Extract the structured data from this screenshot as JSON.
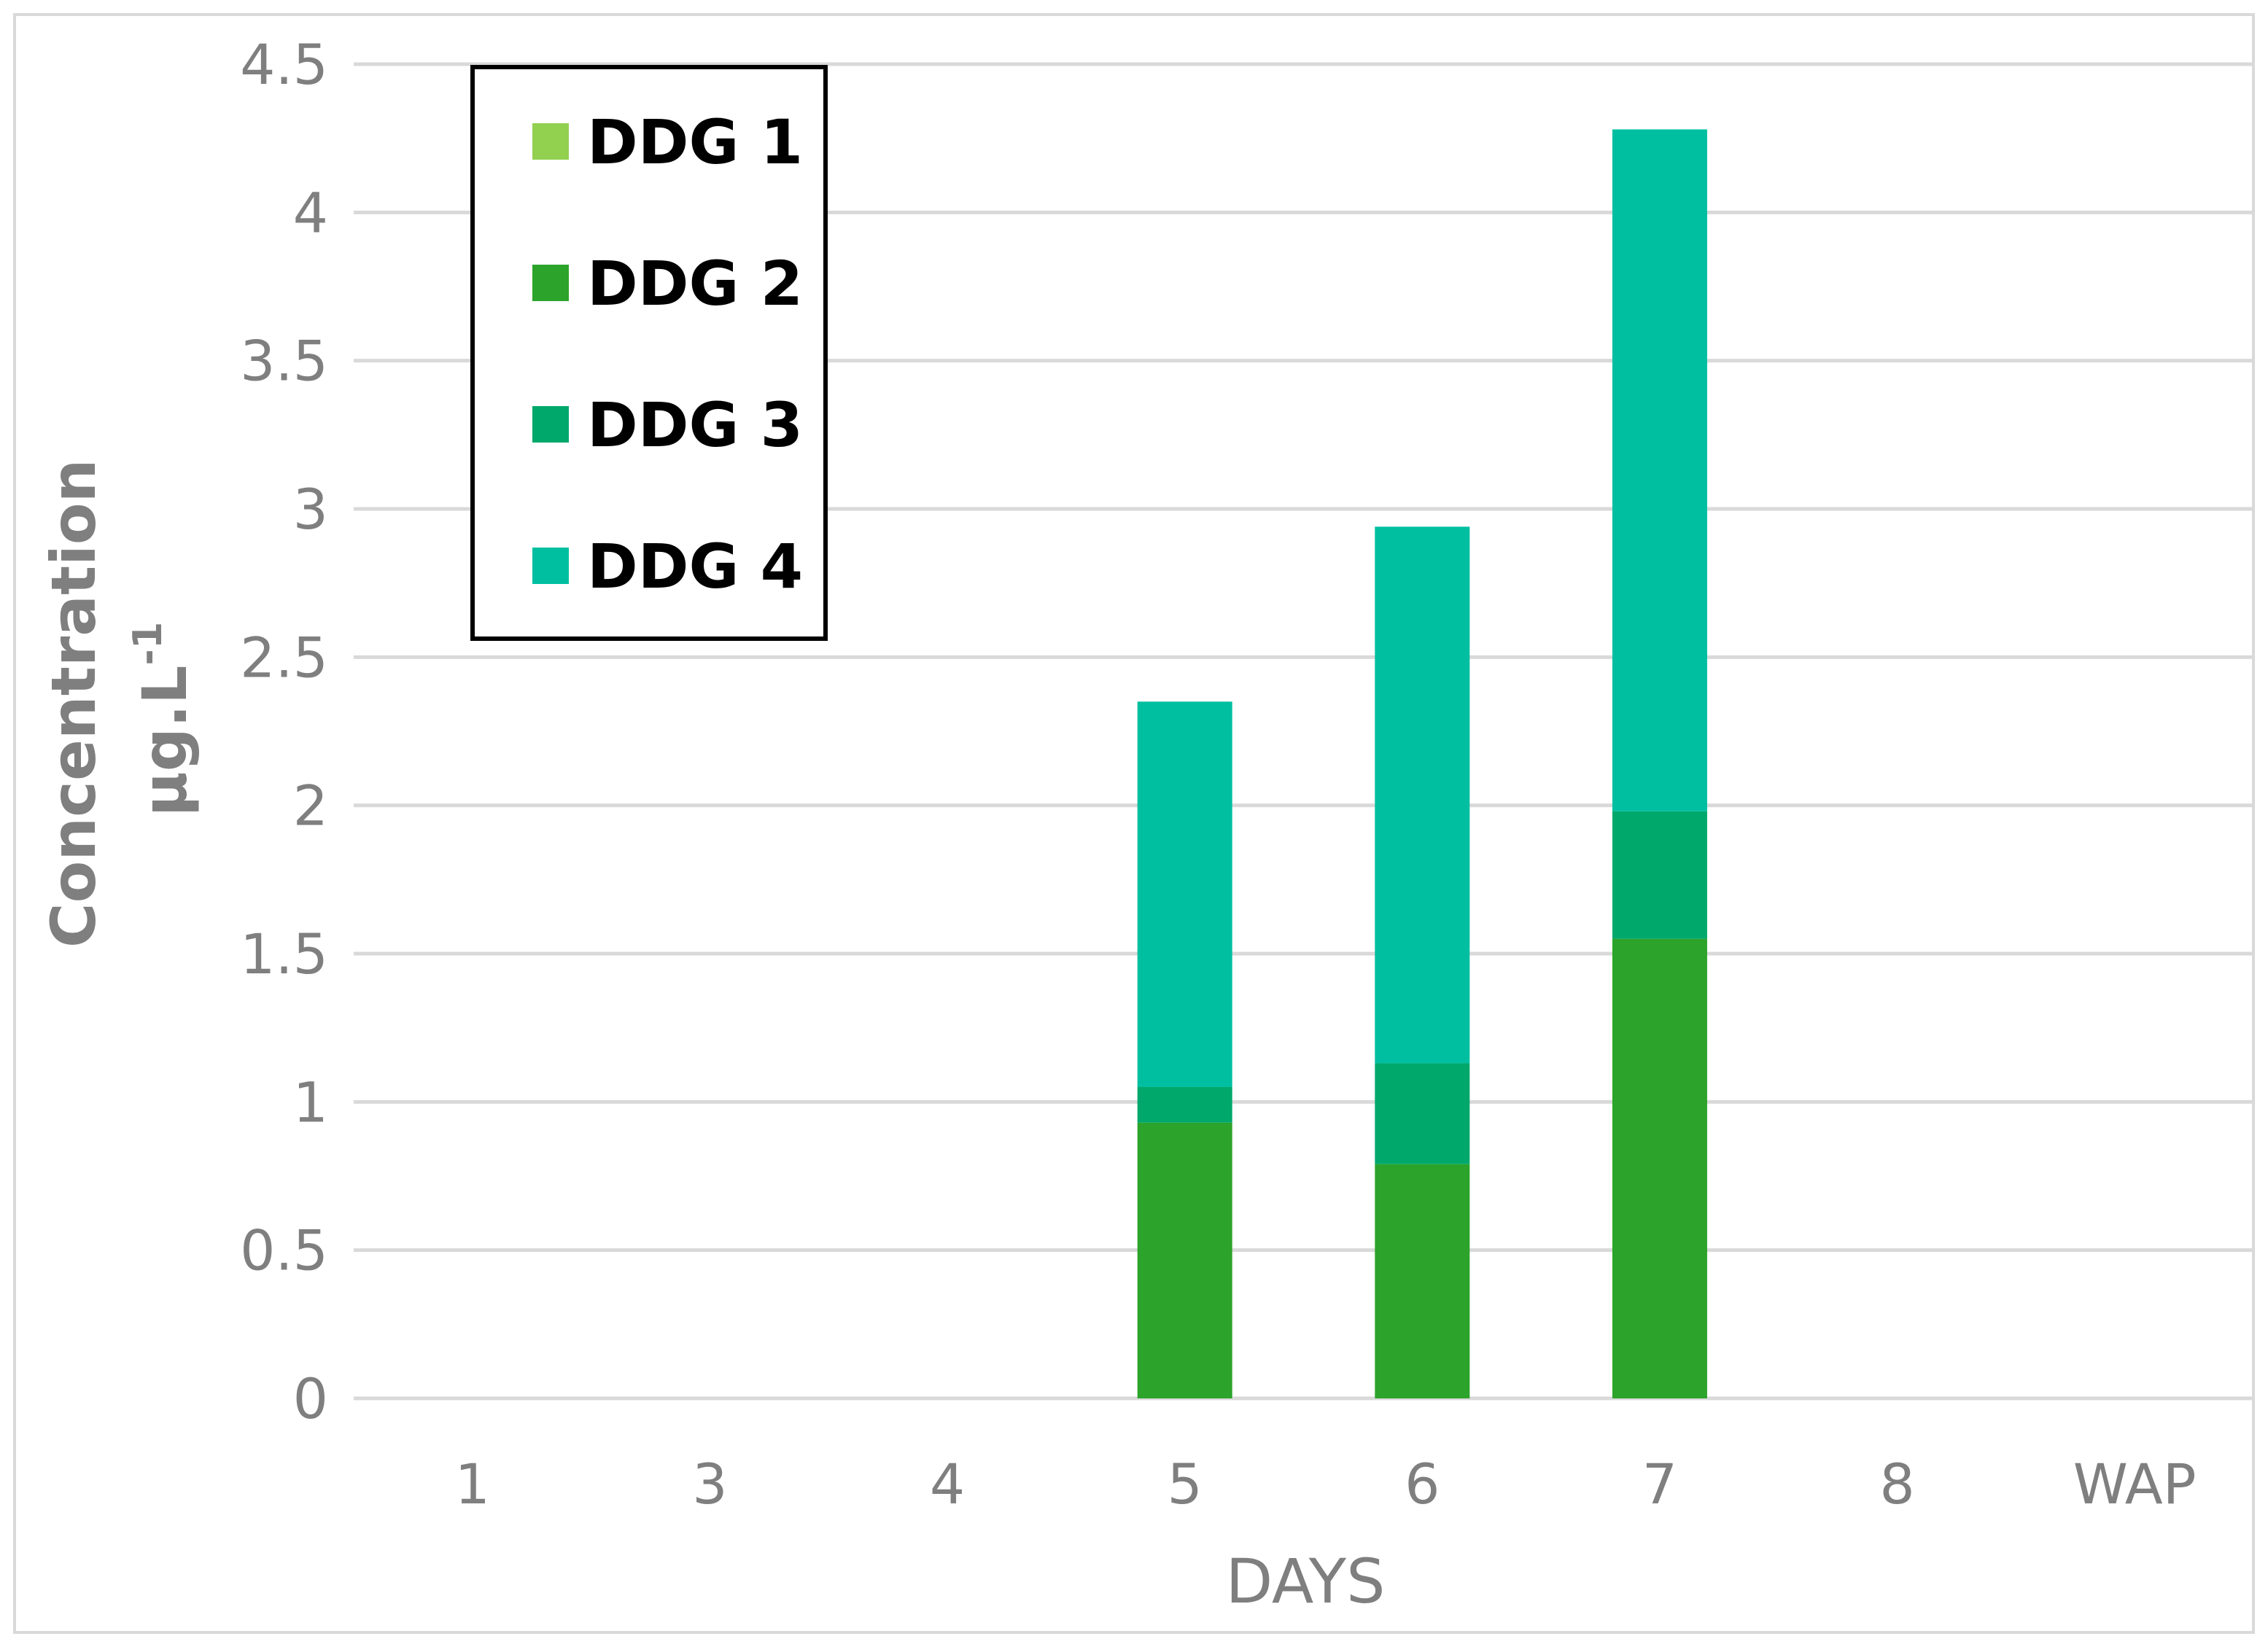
{
  "chart_data": {
    "type": "bar",
    "stacked": true,
    "categories": [
      "1",
      "3",
      "4",
      "5",
      "6",
      "7",
      "8",
      "WAP"
    ],
    "series": [
      {
        "name": "DDG 1",
        "color": "#92d050",
        "values": [
          0,
          0,
          0,
          0,
          0,
          0,
          0,
          0
        ]
      },
      {
        "name": "DDG 2",
        "color": "#2ca32a",
        "values": [
          0,
          0,
          0,
          0.93,
          0.79,
          1.55,
          0,
          0
        ]
      },
      {
        "name": "DDG 3",
        "color": "#00a86b",
        "values": [
          0,
          0,
          0,
          0.12,
          0.34,
          0.43,
          0,
          0
        ]
      },
      {
        "name": "DDG 4",
        "color": "#00bfa0",
        "values": [
          0,
          0,
          0,
          1.3,
          1.81,
          2.3,
          0,
          0
        ]
      }
    ],
    "xlabel": "DAYS",
    "ylabel": {
      "main": "Concentration",
      "unit": "µg.L",
      "unit_sup": "-1"
    },
    "ylim": [
      0,
      4.5
    ],
    "yticks": [
      "0",
      "0.5",
      "1",
      "1.5",
      "2",
      "2.5",
      "3",
      "3.5",
      "4",
      "4.5"
    ],
    "grid": true,
    "legend_position": "top-left",
    "colors": {
      "grid": "#d9d9d9",
      "text": "#7f7f7f",
      "frame": "#d9d9d9"
    }
  }
}
